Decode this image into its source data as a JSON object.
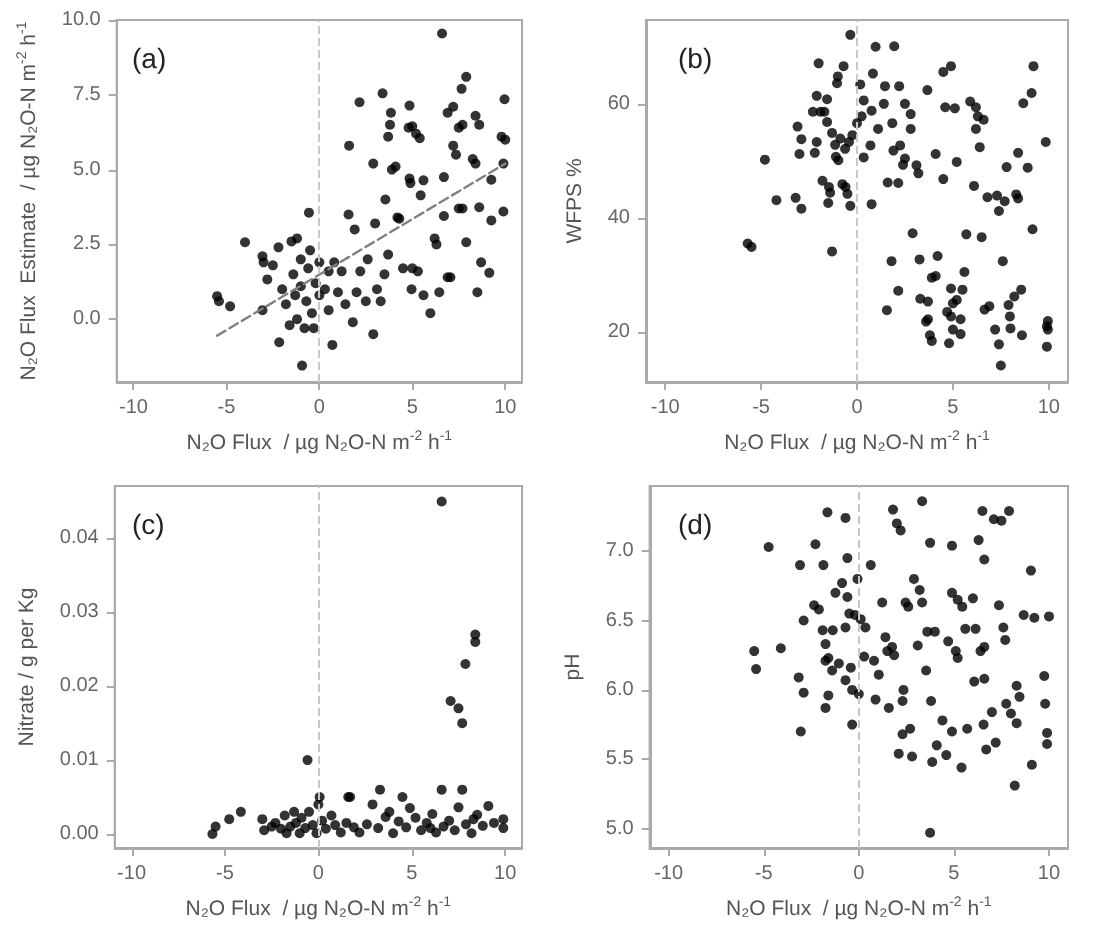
{
  "chart_data": [
    {
      "type": "scatter",
      "annotations": [
        "(a)"
      ],
      "xlabel": "N₂O Flux  / µg N₂O-N m$^{-2}$ h$^{-1}$",
      "ylabel": "N₂O Flux  Estimate  / µg N₂O-N m$^{-2}$ h$^{-1}$",
      "xlim": [
        -10.9,
        10.9
      ],
      "xticks": [
        -10,
        -5,
        0,
        5,
        10
      ],
      "ylim": [
        -2.1,
        10.0
      ],
      "yticks": [
        {
          "value": 0,
          "label": "0.0"
        },
        {
          "value": 2.5,
          "label": "2.5"
        },
        {
          "value": 5,
          "label": "5.0"
        },
        {
          "value": 7.5,
          "label": "7.5"
        },
        {
          "value": 10,
          "label": "10.0"
        }
      ],
      "marker": "circle",
      "ref_lines": [
        {
          "axis": "x",
          "value": 0,
          "color": "#c8c8c8",
          "line_style": "dashed"
        }
      ],
      "series": [
        {
          "color": "#000000",
          "x": [
            -5.5,
            -5.4,
            -4.8,
            -4.0,
            -3.06,
            -3.0,
            -3.06,
            -2.8,
            -2.16,
            -1.5,
            -1.2,
            -0.93,
            -0.56,
            0.7,
            1.57,
            1.6,
            2.16,
            1.9,
            2.9,
            2.9,
            3.4,
            3.7,
            3.8,
            3.85,
            3.55,
            3.7,
            3.9,
            4.1,
            4.3,
            4.85,
            4.8,
            5.0,
            4.85,
            4.9,
            5.2,
            5.4,
            5.45,
            5.6,
            5.0,
            5.3,
            4.96,
            5.6,
            5.97,
            6.2,
            6.3,
            6.6,
            6.7,
            6.9,
            7.2,
            7.2,
            7.35,
            7.5,
            7.7,
            7.65,
            7.9,
            7.5,
            7.7,
            7.05,
            7.9,
            8.4,
            8.6,
            8.25,
            8.4,
            8.6,
            8.5,
            8.7,
            9.14,
            9.25,
            9.25,
            9.8,
            10.0,
            9.9,
            9.9,
            9.96,
            6.45,
            6.7,
            6.9,
            -2.5,
            -2.2,
            -2.0,
            -1.8,
            -1.6,
            -1.4,
            -1.3,
            -1.2,
            -1.0,
            -1.0,
            -0.8,
            -0.7,
            -0.6,
            -0.5,
            -0.4,
            -0.3,
            -0.2,
            0,
            0,
            0.3,
            0.5,
            0.5,
            0.8,
            1.0,
            1.2,
            1.4,
            1.8,
            2.0,
            2.2,
            2.5,
            2.6,
            3.0,
            3.1,
            3.3,
            3.5,
            4.2,
            4.5
          ],
          "values": [
            0.77,
            0.6,
            0.43,
            2.57,
            2.1,
            1.9,
            0.3,
            1.33,
            -0.77,
            2.6,
            2.7,
            -1.55,
            3.56,
            -0.86,
            3.5,
            5.8,
            7.25,
            3.0,
            5.2,
            -0.5,
            7.55,
            6.1,
            6.5,
            6.9,
            4.0,
            2.16,
            5.0,
            5.1,
            3.36,
            7.14,
            6.4,
            6.45,
            4.7,
            4.55,
            6.2,
            6.05,
            4.14,
            4.64,
            1.7,
            1.6,
            1.0,
            0.8,
            0.2,
            2.7,
            2.5,
            9.55,
            4.75,
            6.9,
            7.1,
            5.8,
            5.5,
            6.4,
            6.5,
            7.7,
            8.1,
            3.7,
            3.7,
            1.4,
            2.57,
            6.8,
            6.5,
            5.35,
            5.2,
            3.74,
            0.9,
            1.9,
            1.55,
            3.3,
            4.66,
            6.1,
            6.0,
            5.2,
            3.6,
            7.35,
            0.9,
            3.45,
            1.4,
            1.8,
            2.4,
            1.0,
            0.5,
            -0.2,
            1.5,
            0.8,
            0.0,
            2.0,
            1.1,
            -0.3,
            0.6,
            1.7,
            2.3,
            0.2,
            -0.3,
            1.2,
            1.9,
            0.8,
            1.0,
            1.6,
            0.3,
            1.9,
            0.9,
            1.6,
            0.5,
            -0.1,
            0.9,
            1.6,
            0.6,
            2.0,
            3.2,
            1.0,
            0.6,
            1.5,
            3.4,
            1.7
          ]
        },
        {
          "type": "line",
          "color": "#808080",
          "line_style": "dashed",
          "marker": "none",
          "x": [
            -5.5,
            10
          ],
          "values": [
            -0.55,
            5.2
          ]
        }
      ]
    },
    {
      "type": "scatter",
      "annotations": [
        "(b)"
      ],
      "xlabel": "N₂O Flux  / µg N₂O-N m$^{-2}$ h$^{-1}$",
      "ylabel": "WFPS %",
      "xlim": [
        -11,
        11
      ],
      "xticks": [
        -10,
        -5,
        0,
        5,
        10
      ],
      "ylim": [
        11.2,
        74.7
      ],
      "yticks": [
        20,
        40,
        60
      ],
      "marker": "circle",
      "ref_lines": [
        {
          "axis": "x",
          "value": 0,
          "color": "#c8c8c8",
          "line_style": "dashed"
        }
      ],
      "series": [
        {
          "color": "#000000",
          "x": [
            -0.35,
            0.97,
            1.94,
            -2.0,
            -0.7,
            -1.0,
            -1.04,
            0.83,
            1.46,
            0.17,
            2.2,
            3.67,
            4.5,
            4.9,
            9.2,
            9.1,
            8.67,
            5.9,
            6.2,
            6.3,
            6.6,
            4.6,
            5.1,
            6.2,
            6.4,
            9.84,
            8.4,
            7.8,
            8.9,
            5.2,
            4.1,
            3.1,
            3.2,
            2.5,
            2.4,
            1.9,
            2.25,
            2.5,
            2.8,
            1.1,
            1.6,
            2.15,
            4.5,
            6.1,
            6.8,
            7.3,
            7.7,
            8.3,
            8.4,
            7.4,
            9.15,
            2.9,
            5.7,
            6.5,
            1.8,
            3.26,
            4.2,
            3.9,
            4.1,
            5.6,
            7.6,
            2.15,
            3.3,
            3.7,
            4.9,
            5.5,
            5.0,
            5.2,
            6.65,
            6.9,
            1.56,
            3.6,
            3.7,
            4.7,
            4.9,
            5.4,
            3.8,
            3.9,
            4.8,
            5.4,
            5.0,
            7.2,
            7.4,
            7.9,
            8.2,
            8.56,
            7.97,
            8.0,
            8.6,
            7.5,
            9.95,
            9.95,
            9.9,
            9.9,
            -5.7,
            -5.5,
            -4.8,
            -4.2,
            -3.2,
            -2.9,
            -3.1,
            -2.9,
            -3.0,
            -2.1,
            -2.2,
            -1.9,
            -2.3,
            -1.7,
            -2.1,
            -1.56,
            -1.8,
            -1.46,
            -1.4,
            -1.5,
            -1.3,
            -0.76,
            -0.6,
            -0.35,
            -0.5,
            0.76,
            -1.56,
            -1.3,
            -1.14,
            -0.87,
            -0.62,
            -0.42,
            -0.24,
            0,
            0.24,
            -1.1,
            -0.97,
            0.35,
            0.7,
            0.76,
            1.4,
            0.35,
            1.84,
            2.8
          ],
          "values": [
            72.1,
            70,
            70.1,
            67.1,
            66.6,
            64.8,
            63.6,
            65.3,
            63.1,
            63.4,
            63.1,
            62.4,
            65.6,
            66.6,
            66.6,
            61.9,
            60.1,
            60.4,
            59.4,
            57.8,
            57.2,
            59.4,
            59.2,
            55.6,
            52.4,
            53.3,
            51.4,
            48.9,
            48.8,
            49.8,
            51.2,
            49.2,
            47.8,
            50.4,
            49.3,
            51.8,
            52.7,
            60,
            58.2,
            55.6,
            46.2,
            46.1,
            46.8,
            45.6,
            43.6,
            43.9,
            42.9,
            44.1,
            43.4,
            41.2,
            38,
            37.3,
            37.1,
            36.6,
            32.4,
            32.7,
            33.3,
            29.5,
            29.8,
            30.5,
            32.4,
            27.2,
            25.8,
            25.3,
            27.6,
            27.4,
            25,
            25.6,
            23.9,
            24.5,
            23.8,
            21.8,
            22.2,
            23.5,
            22.7,
            22.2,
            19.4,
            18.4,
            18.0,
            19.6,
            20.4,
            20.4,
            17.8,
            24.7,
            26.2,
            27.4,
            22.7,
            20.6,
            19.4,
            14.1,
            21.9,
            20.4,
            17.4,
            21,
            35.5,
            34.9,
            50.2,
            43.1,
            43.5,
            41.6,
            56,
            53.8,
            51.2,
            53.3,
            51.4,
            58.6,
            58.6,
            58.6,
            61.4,
            60.8,
            46.5,
            45.4,
            44.4,
            42.6,
            34.1,
            45.9,
            45.4,
            42.1,
            44.2,
            42.4,
            56.8,
            54.9,
            52.8,
            53.9,
            52.1,
            53.3,
            54.5,
            56.6,
            57.8,
            50.7,
            50.1,
            50.6,
            52.7,
            58.8,
            60,
            60.6,
            56.6,
            55.6
          ]
        }
      ]
    },
    {
      "type": "scatter",
      "annotations": [
        "(c)"
      ],
      "xlabel": "N₂O Flux  / µg N₂O-N m$^{-2}$ h$^{-1}$",
      "ylabel": "Nitrate / g per Kg",
      "xlim": [
        -10.9,
        10.9
      ],
      "xticks": [
        -10,
        -5,
        0,
        5,
        10
      ],
      "ylim": [
        -0.0019,
        0.0471
      ],
      "yticks": [
        {
          "value": 0,
          "label": "0.00"
        },
        {
          "value": 0.01,
          "label": "0.01"
        },
        {
          "value": 0.02,
          "label": "0.02"
        },
        {
          "value": 0.03,
          "label": "0.03"
        },
        {
          "value": 0.04,
          "label": "0.04"
        }
      ],
      "marker": "circle",
      "ref_lines": [
        {
          "axis": "x",
          "value": 0,
          "color": "#c8c8c8",
          "line_style": "dashed"
        }
      ],
      "series": [
        {
          "color": "#000000",
          "x": [
            6.6,
            -0.58,
            8.4,
            8.4,
            7.87,
            7.08,
            7.5,
            7.7,
            6.6,
            7.7,
            3.3,
            4.5,
            1.6,
            1.7,
            0.07,
            -5.67,
            -5.5,
            -4.77,
            -4.15,
            -3.0,
            -2.9,
            -2.5,
            -2.3,
            -2.0,
            -1.8,
            -1.7,
            -1.5,
            -1.3,
            -1.2,
            -1.0,
            -0.9,
            -0.7,
            -0.5,
            -0.3,
            -0.1,
            0,
            0.2,
            0.4,
            0.7,
            0.9,
            1.2,
            1.5,
            1.9,
            2.2,
            2.6,
            2.9,
            3.2,
            3.6,
            3.8,
            4.0,
            4.3,
            4.7,
            4.9,
            5.2,
            5.5,
            5.8,
            6.1,
            6.3,
            6.7,
            7.0,
            7.3,
            7.5,
            7.9,
            8.2,
            8.5,
            8.8,
            9.1,
            9.4,
            9.9,
            9.9,
            8.3,
            6.0
          ],
          "values": [
            0.045,
            0.01,
            0.027,
            0.026,
            0.023,
            0.018,
            0.017,
            0.015,
            0.006,
            0.006,
            0.006,
            0.005,
            0.005,
            0.005,
            0.005,
            0.0,
            0.001,
            0.002,
            0.003,
            0.002,
            0.0005,
            0.001,
            0.0015,
            0.0007,
            0.0025,
            0.0001,
            0.001,
            0.003,
            0.0015,
            0.0001,
            0.0022,
            0.0008,
            0.003,
            0.0012,
            0.0001,
            0.004,
            0.0018,
            0.0007,
            0.0025,
            0.0012,
            0.0002,
            0.0015,
            0.0009,
            0.0002,
            0.0013,
            0.004,
            0.0008,
            0.0023,
            0.003,
            0.0001,
            0.0017,
            0.0009,
            0.0035,
            0.0022,
            0.0005,
            0.0015,
            0.0027,
            0.0002,
            0.001,
            0.0018,
            0.0005,
            0.0036,
            0.0013,
            0.0001,
            0.0026,
            0.0011,
            0.0038,
            0.0015,
            0.002,
            0.0008,
            0.002,
            0.0008
          ]
        }
      ]
    },
    {
      "type": "scatter",
      "annotations": [
        "(d)"
      ],
      "xlabel": "N₂O Flux  / µg N₂O-N m$^{-2}$ h$^{-1}$",
      "ylabel": "pH",
      "xlim": [
        -11,
        11
      ],
      "xticks": [
        -10,
        -5,
        0,
        5,
        10
      ],
      "ylim": [
        4.86,
        7.47
      ],
      "yticks": [
        {
          "value": 5,
          "label": "5.0"
        },
        {
          "value": 5.5,
          "label": "5.5"
        },
        {
          "value": 6,
          "label": "6.0"
        },
        {
          "value": 6.5,
          "label": "6.5"
        },
        {
          "value": 7,
          "label": "7.0"
        }
      ],
      "marker": "circle",
      "ref_lines": [
        {
          "axis": "x",
          "value": 0,
          "color": "#c8c8c8",
          "line_style": "dashed"
        }
      ],
      "series": [
        {
          "color": "#000000",
          "x": [
            3.33,
            1.8,
            2.0,
            2.2,
            -0.7,
            -1.65,
            -4.74,
            -2.28,
            -3.09,
            -1.86,
            -0.6,
            0.63,
            3.75,
            4.9,
            6.5,
            7.1,
            7.5,
            7.9,
            6.3,
            6.6,
            9.05,
            -5.5,
            -5.4,
            -4.1,
            -3.16,
            -2.9,
            -2.9,
            -3.05,
            -2.35,
            -2.1,
            -1.75,
            -1.6,
            -1.9,
            -1.75,
            -1.6,
            -1.4,
            -0.35,
            0,
            -0.35,
            -0.7,
            -0.5,
            -0.2,
            0.1,
            0.35,
            -1.23,
            -0.88,
            -0.6,
            -0.07,
            0.28,
            0.8,
            1.05,
            1.23,
            1.5,
            1.4,
            1.75,
            1.86,
            1.58,
            0.88,
            2.3,
            2.35,
            2.1,
            2.3,
            2.7,
            2.8,
            2.9,
            3.2,
            2.46,
            2.6,
            3.33,
            3.1,
            3.6,
            4.0,
            3.54,
            3.8,
            3.86,
            4.1,
            4.4,
            4.6,
            3.75,
            4.7,
            4.9,
            5.2,
            5.1,
            5.2,
            4.9,
            5.4,
            5.7,
            5.44,
            5.6,
            6.0,
            6.14,
            6.4,
            6.6,
            6.07,
            6.6,
            6.56,
            6.7,
            7.0,
            7.2,
            7.37,
            7.6,
            7.7,
            7.75,
            8.0,
            8.2,
            8.3,
            8.45,
            8.3,
            8.67,
            9.23,
            9.1,
            9.75,
            9.8,
            9.9,
            9.9,
            10.0,
            -1.37,
            -1.75,
            -1.05,
            -0.7,
            -0.42
          ],
          "values": [
            7.36,
            7.3,
            7.2,
            7.15,
            7.24,
            7.28,
            7.03,
            7.05,
            6.9,
            6.9,
            6.95,
            6.9,
            7.06,
            7.04,
            7.29,
            7.23,
            7.22,
            7.29,
            7.08,
            6.94,
            6.86,
            6.28,
            6.15,
            6.3,
            6.09,
            6.5,
            5.98,
            5.7,
            6.61,
            6.58,
            5.87,
            5.96,
            6.43,
            6.33,
            6.23,
            6.14,
            5.75,
            5.97,
            6.0,
            6.45,
            6.55,
            6.54,
            6.51,
            6.45,
            6.7,
            6.77,
            6.67,
            6.8,
            6.24,
            6.21,
            6.11,
            6.63,
            6.28,
            6.38,
            6.31,
            6.25,
            5.87,
            5.93,
            5.92,
            6.0,
            5.54,
            5.68,
            5.72,
            5.52,
            6.8,
            6.72,
            6.63,
            6.6,
            6.63,
            6.32,
            6.42,
            6.42,
            6.14,
            5.92,
            5.48,
            5.6,
            5.78,
            5.53,
            4.97,
            6.35,
            6.7,
            6.65,
            6.28,
            6.23,
            5.7,
            5.44,
            5.72,
            6.6,
            6.44,
            6.66,
            6.44,
            6.28,
            6.31,
            6.06,
            6.08,
            5.75,
            5.57,
            5.84,
            5.62,
            6.61,
            6.45,
            6.36,
            5.9,
            5.83,
            5.31,
            6.03,
            5.95,
            5.76,
            6.54,
            6.52,
            5.46,
            6.1,
            5.9,
            5.61,
            5.69,
            6.53,
            6.43,
            6.21,
            6.19,
            6.07,
            6.16
          ]
        }
      ]
    }
  ]
}
